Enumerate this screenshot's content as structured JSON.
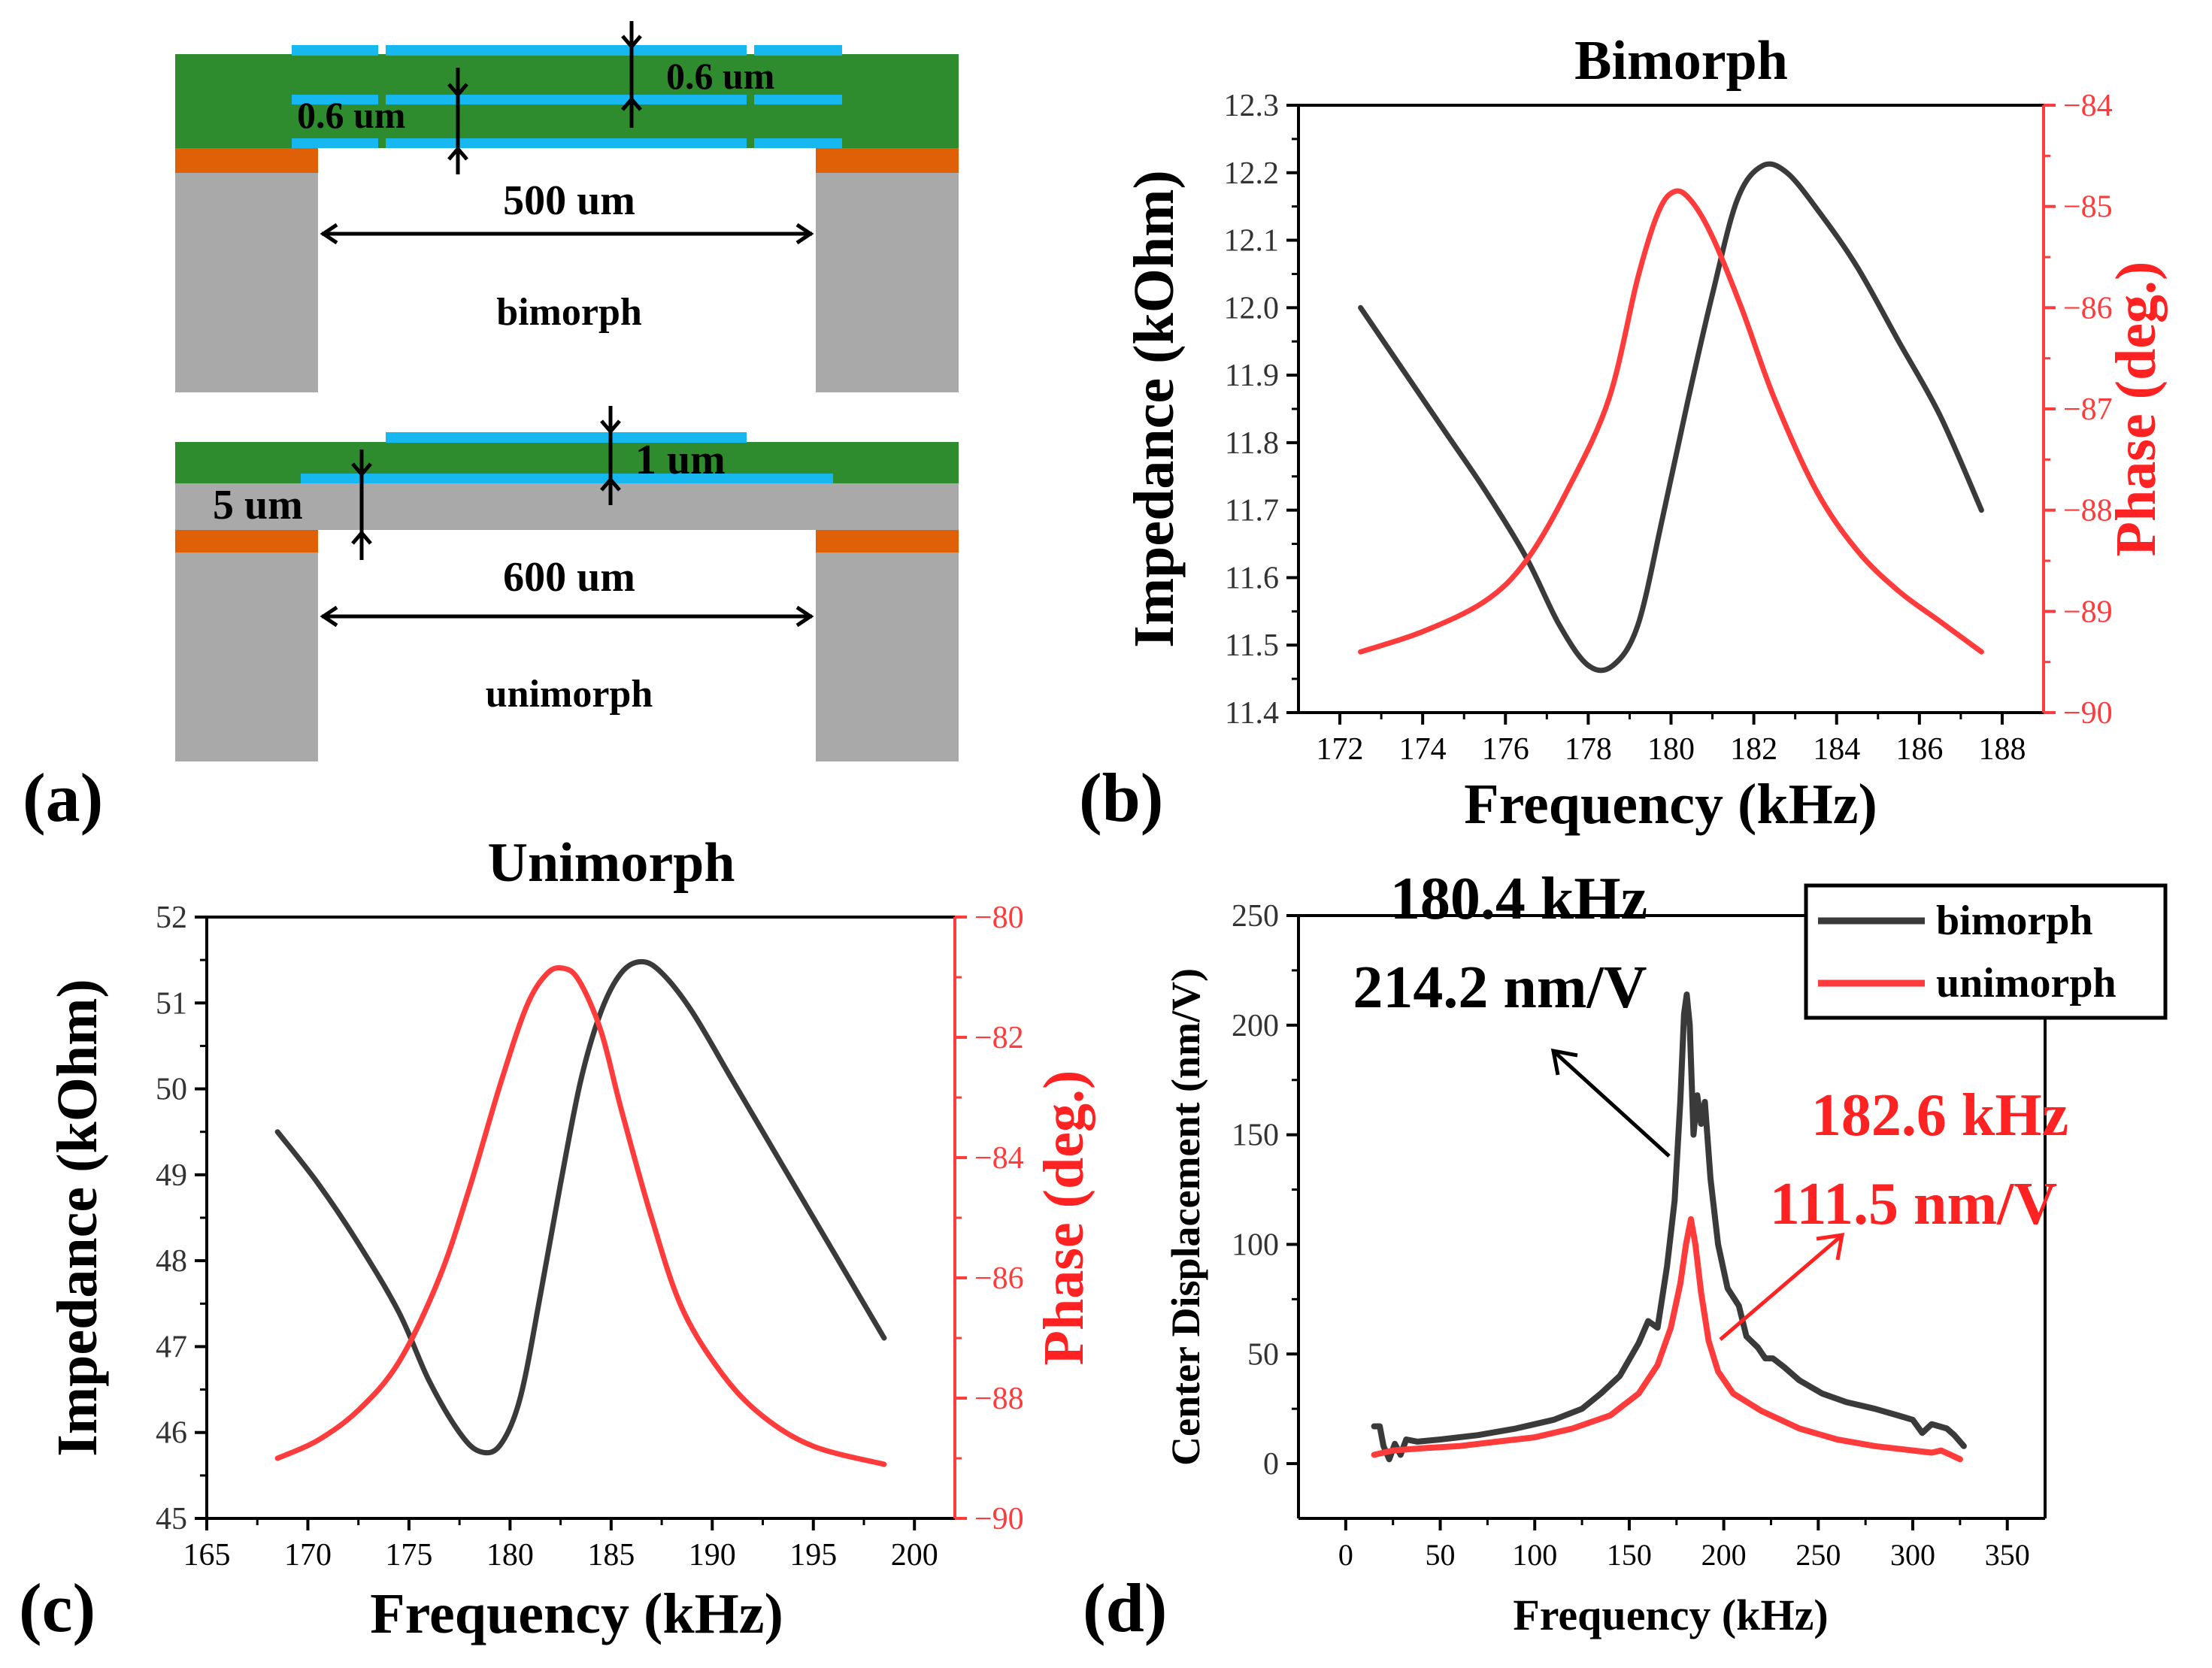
{
  "colors": {
    "black_series": "#3a3a3a",
    "red_series": "#ff3b3b",
    "red_axis": "#ff3b3b",
    "green_layer": "#2e8b2e",
    "blue_electrode": "#17b7f0",
    "orange_layer": "#e06008",
    "gray_substrate": "#a9a9a9"
  },
  "panel_a": {
    "panel_label": "(a)",
    "bimorph": {
      "label": "bimorph",
      "width_label": "500 um",
      "thickness_label_left": "0.6 um",
      "thickness_label_right": "0.6 um"
    },
    "unimorph": {
      "label": "unimorph",
      "width_label": "600 um",
      "thickness_label_top": "1 um",
      "thickness_label_side": "5 um"
    }
  },
  "chart_data": [
    {
      "id": "b",
      "panel_label": "(b)",
      "type": "line",
      "title": "Bimorph",
      "xlabel": "Frequency (kHz)",
      "ylabel": "Impedance (kOhm)",
      "y2label": "Phase (deg.)",
      "xlim": [
        171,
        189
      ],
      "ylim": [
        11.4,
        12.3
      ],
      "y2lim": [
        -90,
        -84
      ],
      "xticks": [
        "172",
        "174",
        "176",
        "178",
        "180",
        "182",
        "184",
        "186",
        "188"
      ],
      "yticks": [
        "11.4",
        "11.5",
        "11.6",
        "11.7",
        "11.8",
        "11.9",
        "12.0",
        "12.1",
        "12.2",
        "12.3"
      ],
      "y2ticks": [
        "-90",
        "-89",
        "-88",
        "-87",
        "-86",
        "-85",
        "-84"
      ],
      "series": [
        {
          "name": "Impedance",
          "axis": "left",
          "color": "#3a3a3a",
          "points": [
            [
              172.5,
              12.0
            ],
            [
              173.5,
              11.91
            ],
            [
              174.5,
              11.82
            ],
            [
              175.5,
              11.73
            ],
            [
              176.5,
              11.63
            ],
            [
              177.3,
              11.53
            ],
            [
              178.0,
              11.47
            ],
            [
              178.6,
              11.47
            ],
            [
              179.2,
              11.53
            ],
            [
              179.8,
              11.69
            ],
            [
              180.4,
              11.86
            ],
            [
              181.0,
              12.02
            ],
            [
              181.6,
              12.16
            ],
            [
              182.2,
              12.21
            ],
            [
              182.8,
              12.2
            ],
            [
              183.6,
              12.14
            ],
            [
              184.5,
              12.06
            ],
            [
              185.5,
              11.95
            ],
            [
              186.5,
              11.84
            ],
            [
              187.5,
              11.7
            ]
          ]
        },
        {
          "name": "Phase",
          "axis": "right",
          "color": "#ff3b3b",
          "points": [
            [
              172.5,
              -89.4
            ],
            [
              174.0,
              -89.2
            ],
            [
              175.5,
              -88.9
            ],
            [
              176.5,
              -88.5
            ],
            [
              177.5,
              -87.8
            ],
            [
              178.5,
              -86.9
            ],
            [
              179.2,
              -85.7
            ],
            [
              179.7,
              -85.05
            ],
            [
              180.1,
              -84.85
            ],
            [
              180.5,
              -84.95
            ],
            [
              181.0,
              -85.3
            ],
            [
              181.7,
              -86.0
            ],
            [
              182.5,
              -86.9
            ],
            [
              183.5,
              -87.8
            ],
            [
              184.5,
              -88.4
            ],
            [
              185.5,
              -88.8
            ],
            [
              186.5,
              -89.1
            ],
            [
              187.5,
              -89.4
            ]
          ]
        }
      ]
    },
    {
      "id": "c",
      "panel_label": "(c)",
      "type": "line",
      "title": "Unimorph",
      "xlabel": "Frequency (kHz)",
      "ylabel": "Impedance (kOhm)",
      "y2label": "Phase (deg.)",
      "xlim": [
        165,
        202
      ],
      "ylim": [
        45,
        52
      ],
      "y2lim": [
        -90,
        -80
      ],
      "xticks": [
        "165",
        "170",
        "175",
        "180",
        "185",
        "190",
        "195",
        "200"
      ],
      "yticks": [
        "45",
        "46",
        "47",
        "48",
        "49",
        "50",
        "51",
        "52"
      ],
      "y2ticks": [
        "-90",
        "-88",
        "-86",
        "-84",
        "-82",
        "-80"
      ],
      "series": [
        {
          "name": "Impedance",
          "axis": "left",
          "color": "#3a3a3a",
          "points": [
            [
              168.5,
              49.5
            ],
            [
              170.5,
              48.9
            ],
            [
              172.5,
              48.2
            ],
            [
              174.5,
              47.4
            ],
            [
              176.0,
              46.6
            ],
            [
              177.5,
              46.0
            ],
            [
              178.5,
              45.78
            ],
            [
              179.5,
              45.85
            ],
            [
              180.5,
              46.4
            ],
            [
              181.5,
              47.6
            ],
            [
              182.5,
              48.9
            ],
            [
              183.5,
              50.1
            ],
            [
              184.5,
              50.9
            ],
            [
              185.5,
              51.35
            ],
            [
              186.5,
              51.48
            ],
            [
              187.5,
              51.35
            ],
            [
              189.0,
              50.9
            ],
            [
              191.0,
              50.1
            ],
            [
              193.0,
              49.3
            ],
            [
              195.0,
              48.5
            ],
            [
              197.0,
              47.7
            ],
            [
              198.5,
              47.1
            ]
          ]
        },
        {
          "name": "Phase",
          "axis": "right",
          "color": "#ff3b3b",
          "points": [
            [
              168.5,
              -89.0
            ],
            [
              170.5,
              -88.7
            ],
            [
              172.5,
              -88.2
            ],
            [
              174.5,
              -87.4
            ],
            [
              176.5,
              -86.0
            ],
            [
              178.0,
              -84.5
            ],
            [
              179.5,
              -82.8
            ],
            [
              180.8,
              -81.5
            ],
            [
              181.8,
              -80.95
            ],
            [
              182.6,
              -80.85
            ],
            [
              183.4,
              -81.05
            ],
            [
              184.5,
              -81.9
            ],
            [
              185.5,
              -83.2
            ],
            [
              187.0,
              -85.0
            ],
            [
              188.5,
              -86.5
            ],
            [
              190.5,
              -87.6
            ],
            [
              192.5,
              -88.3
            ],
            [
              195.0,
              -88.8
            ],
            [
              198.5,
              -89.1
            ]
          ]
        }
      ]
    },
    {
      "id": "d",
      "panel_label": "(d)",
      "type": "line",
      "title": "",
      "xlabel": "Frequency (kHz)",
      "ylabel": "Center Displacement (nm/V)",
      "xlim": [
        -25,
        370
      ],
      "ylim": [
        -25,
        250
      ],
      "xticks": [
        "0",
        "50",
        "100",
        "150",
        "200",
        "250",
        "300",
        "350"
      ],
      "yticks": [
        "0",
        "50",
        "100",
        "150",
        "200",
        "250"
      ],
      "legend": {
        "position": "top-right",
        "entries": [
          "bimorph",
          "unimorph"
        ]
      },
      "annotations": [
        {
          "line1": "180.4 kHz",
          "line2": "214.2 nm/V",
          "color": "#000000"
        },
        {
          "line1": "182.6 kHz",
          "line2": "111.5 nm/V",
          "color": "#ff2222"
        }
      ],
      "series": [
        {
          "name": "bimorph",
          "color": "#3a3a3a",
          "points": [
            [
              15,
              17
            ],
            [
              18,
              17
            ],
            [
              20,
              8
            ],
            [
              23,
              2
            ],
            [
              26,
              9
            ],
            [
              29,
              4
            ],
            [
              32,
              11
            ],
            [
              38,
              10
            ],
            [
              50,
              11
            ],
            [
              70,
              13
            ],
            [
              90,
              16
            ],
            [
              110,
              20
            ],
            [
              125,
              25
            ],
            [
              135,
              32
            ],
            [
              145,
              40
            ],
            [
              155,
              55
            ],
            [
              160,
              65
            ],
            [
              165,
              62
            ],
            [
              170,
              90
            ],
            [
              174,
              120
            ],
            [
              177,
              165
            ],
            [
              179,
              205
            ],
            [
              180.4,
              214
            ],
            [
              182,
              200
            ],
            [
              184,
              150
            ],
            [
              186,
              168
            ],
            [
              188,
              155
            ],
            [
              190,
              165
            ],
            [
              193,
              130
            ],
            [
              197,
              100
            ],
            [
              202,
              80
            ],
            [
              208,
              72
            ],
            [
              212,
              58
            ],
            [
              218,
              53
            ],
            [
              222,
              48
            ],
            [
              226,
              48
            ],
            [
              232,
              44
            ],
            [
              240,
              38
            ],
            [
              252,
              32
            ],
            [
              265,
              28
            ],
            [
              280,
              25
            ],
            [
              292,
              22
            ],
            [
              300,
              20
            ],
            [
              305,
              14
            ],
            [
              310,
              18
            ],
            [
              318,
              16
            ],
            [
              322,
              13
            ],
            [
              327,
              8
            ]
          ]
        },
        {
          "name": "unimorph",
          "color": "#ff3b3b",
          "points": [
            [
              15,
              4
            ],
            [
              25,
              6
            ],
            [
              40,
              7
            ],
            [
              60,
              8
            ],
            [
              80,
              10
            ],
            [
              100,
              12
            ],
            [
              120,
              16
            ],
            [
              140,
              22
            ],
            [
              155,
              32
            ],
            [
              165,
              45
            ],
            [
              172,
              62
            ],
            [
              177,
              82
            ],
            [
              180,
              100
            ],
            [
              182.6,
              111.5
            ],
            [
              185,
              100
            ],
            [
              188,
              78
            ],
            [
              192,
              56
            ],
            [
              197,
              42
            ],
            [
              205,
              32
            ],
            [
              220,
              24
            ],
            [
              240,
              16
            ],
            [
              260,
              11
            ],
            [
              280,
              8
            ],
            [
              300,
              6
            ],
            [
              310,
              5
            ],
            [
              315,
              6
            ],
            [
              320,
              4
            ],
            [
              325,
              2
            ]
          ]
        }
      ]
    }
  ]
}
